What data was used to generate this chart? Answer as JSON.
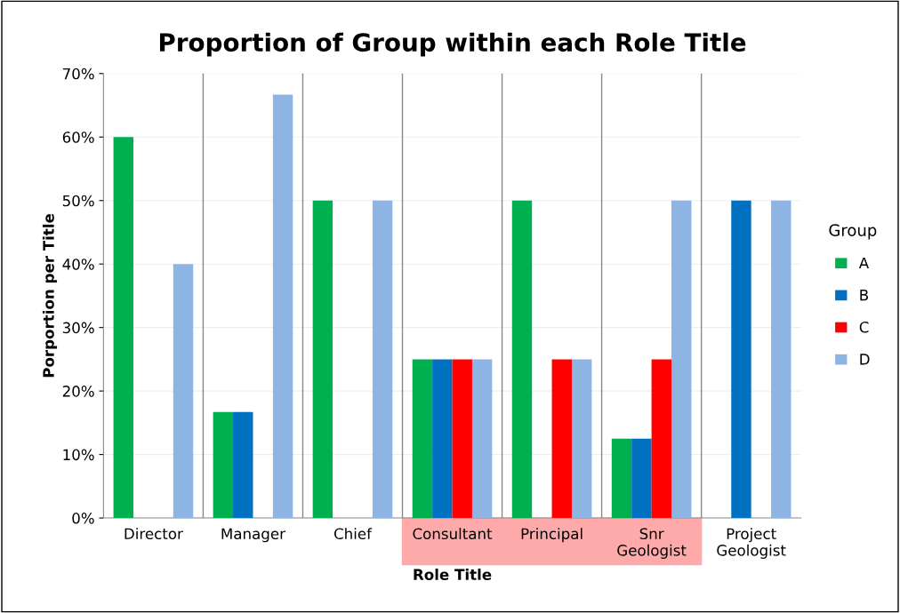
{
  "chart_data": {
    "type": "bar",
    "title": "Proportion of Group within each Role Title",
    "xlabel": "Role Title",
    "ylabel": "Porportion per Title",
    "legend_title": "Group",
    "categories": [
      "Director",
      "Manager",
      "Chief",
      "Consultant",
      "Principal",
      "Snr\nGeologist",
      "Project\nGeologist"
    ],
    "series": [
      {
        "name": "A",
        "color": "#00b050",
        "values": [
          60,
          16.7,
          50,
          25,
          50,
          12.5,
          0
        ]
      },
      {
        "name": "B",
        "color": "#0070c0",
        "values": [
          0,
          16.7,
          0,
          25,
          0,
          12.5,
          50
        ]
      },
      {
        "name": "C",
        "color": "#ff0000",
        "values": [
          0,
          0,
          0,
          25,
          25,
          25,
          0
        ]
      },
      {
        "name": "D",
        "color": "#8eb4e3",
        "values": [
          40,
          66.7,
          50,
          25,
          25,
          50,
          50
        ]
      }
    ],
    "ylim": [
      0,
      70
    ],
    "yticks": [
      {
        "value": 0,
        "label": "0%"
      },
      {
        "value": 10,
        "label": "10%"
      },
      {
        "value": 20,
        "label": "20%"
      },
      {
        "value": 30,
        "label": "30%"
      },
      {
        "value": 40,
        "label": "40%"
      },
      {
        "value": 50,
        "label": "50%"
      },
      {
        "value": 60,
        "label": "60%"
      },
      {
        "value": 70,
        "label": "70%"
      }
    ],
    "grid": true,
    "legend": "right"
  }
}
